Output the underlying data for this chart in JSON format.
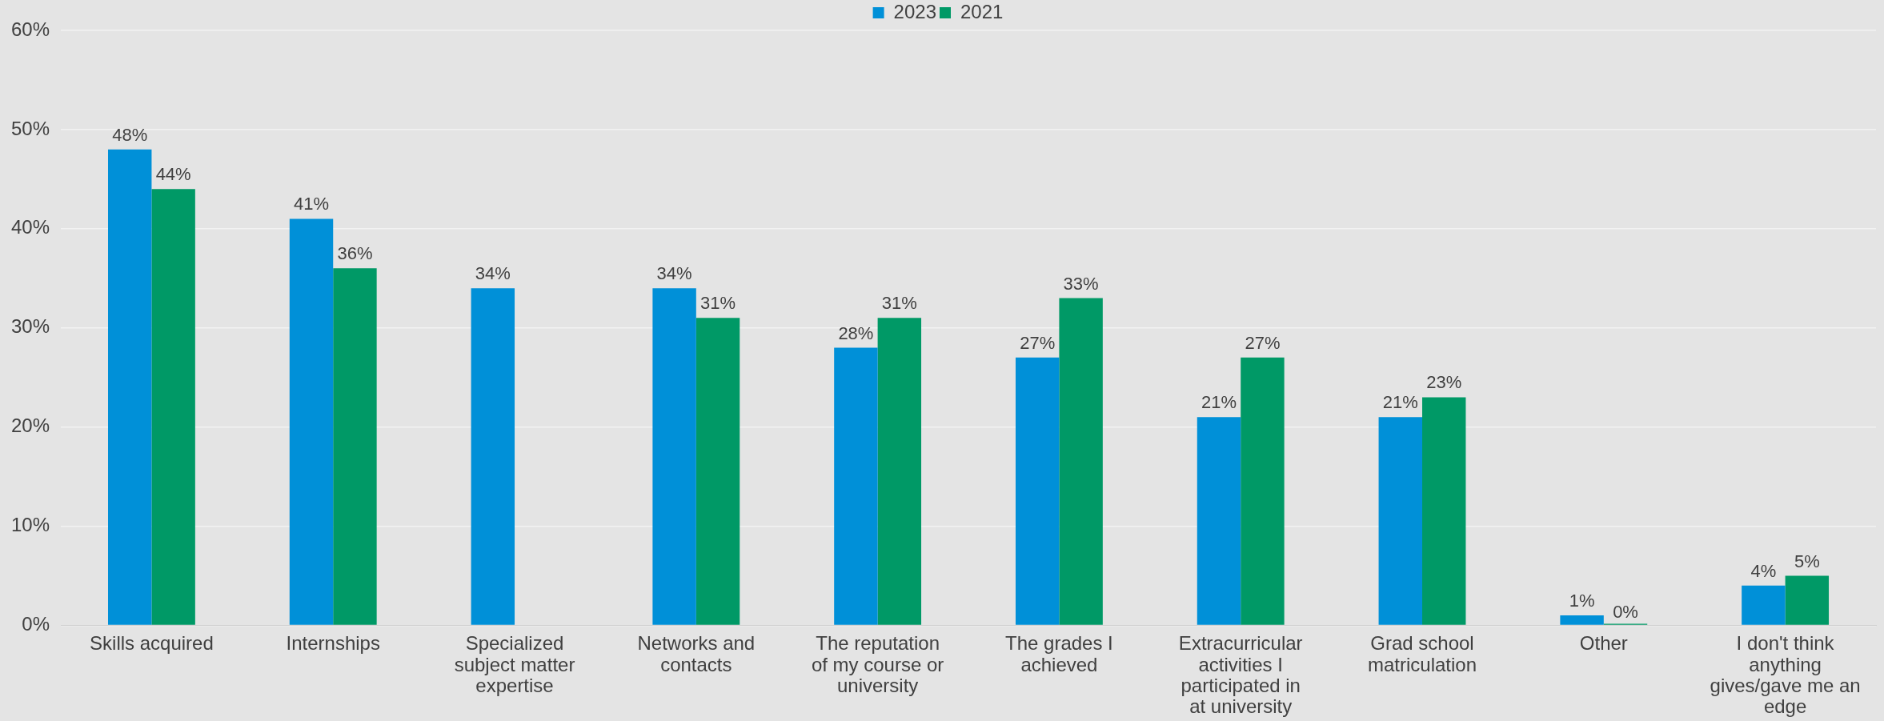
{
  "chart_data": {
    "type": "bar",
    "categories": [
      "Skills acquired",
      "Internships",
      "Specialized subject matter expertise",
      "Networks and contacts",
      "The reputation of my course or university",
      "The grades I achieved",
      "Extracurricular activities I participated in at university",
      "Grad school matriculation",
      "Other",
      "I don't think anything gives/gave me an edge"
    ],
    "series": [
      {
        "name": "2023",
        "color": "#0090d8",
        "values": [
          48,
          41,
          34,
          34,
          28,
          27,
          21,
          21,
          1,
          4
        ],
        "value_labels": [
          "48%",
          "41%",
          "34%",
          "34%",
          "28%",
          "27%",
          "21%",
          "21%",
          "1%",
          "4%"
        ]
      },
      {
        "name": "2021",
        "color": "#009966",
        "values": [
          44,
          36,
          null,
          31,
          31,
          33,
          27,
          23,
          0,
          5
        ],
        "value_labels": [
          "44%",
          "36%",
          null,
          "31%",
          "31%",
          "33%",
          "27%",
          "23%",
          "0%",
          "5%"
        ]
      }
    ],
    "ylim": [
      0,
      60
    ],
    "yticks": [
      {
        "value": 0,
        "label": "0%"
      },
      {
        "value": 10,
        "label": "10%"
      },
      {
        "value": 20,
        "label": "20%"
      },
      {
        "value": 30,
        "label": "30%"
      },
      {
        "value": 40,
        "label": "40%"
      },
      {
        "value": 50,
        "label": "50%"
      },
      {
        "value": 60,
        "label": "60%"
      }
    ],
    "grid": "y",
    "legend": "top"
  }
}
